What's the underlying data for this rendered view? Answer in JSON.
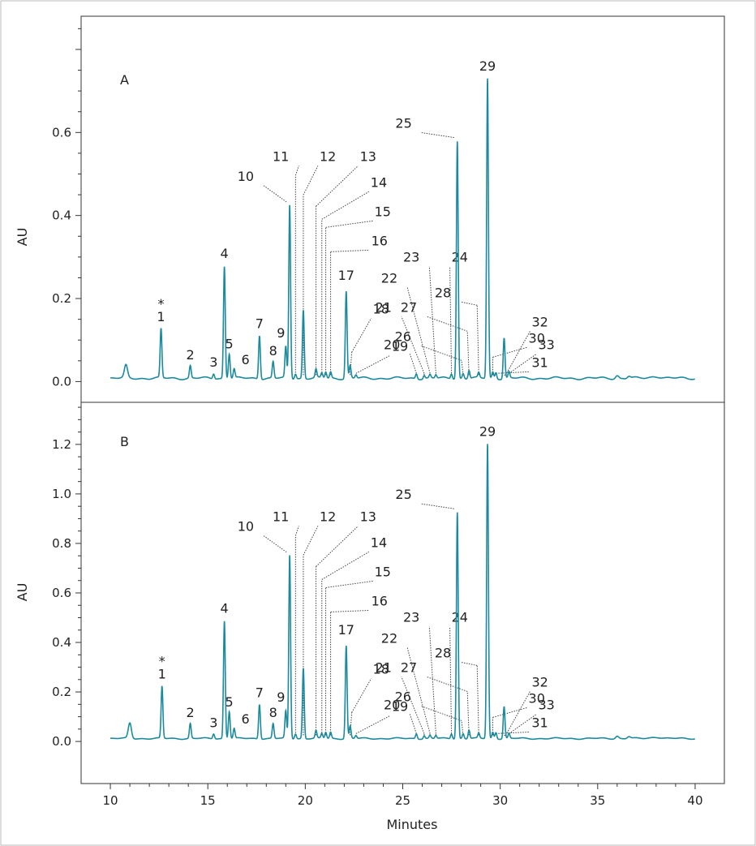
{
  "chart_data": {
    "type": "line",
    "xlabel": "Minutes",
    "x_ticks": [
      10,
      15,
      20,
      25,
      30,
      35,
      40
    ],
    "x_range": [
      8.5,
      41.5
    ],
    "line_color": "#1a8a9e",
    "panels": [
      {
        "label": "A",
        "ylabel": "AU",
        "y_ticks": [
          "0.0",
          "0.2",
          "0.4",
          "0.6"
        ],
        "y_range": [
          -0.05,
          0.88
        ],
        "baseline": 0.008,
        "extra_peaks": [
          {
            "t": 10.8,
            "h": 0.03,
            "w": 0.08
          },
          {
            "t": 36.0,
            "h": 0.007,
            "w": 0.08
          },
          {
            "t": 36.6,
            "h": 0.005,
            "w": 0.08
          },
          {
            "t": 38.0,
            "h": 0.005,
            "w": 0.25
          }
        ],
        "peaks": [
          {
            "label": "1",
            "t": 12.6,
            "h": 0.118,
            "star": true
          },
          {
            "label": "2",
            "t": 14.1,
            "h": 0.03
          },
          {
            "label": "3",
            "t": 15.3,
            "h": 0.012
          },
          {
            "label": "4",
            "t": 15.85,
            "h": 0.27
          },
          {
            "label": "5",
            "t": 16.1,
            "h": 0.06
          },
          {
            "label": "6",
            "t": 16.35,
            "h": 0.022
          },
          {
            "label": "7",
            "t": 17.65,
            "h": 0.105
          },
          {
            "label": "8",
            "t": 18.35,
            "h": 0.04
          },
          {
            "label": "9",
            "t": 19.0,
            "h": 0.075
          },
          {
            "label": "10",
            "t": 19.2,
            "h": 0.417
          },
          {
            "label": "11",
            "t": 19.5,
            "h": 0.012
          },
          {
            "label": "12",
            "t": 19.9,
            "h": 0.165
          },
          {
            "label": "13",
            "t": 20.55,
            "h": 0.02
          },
          {
            "label": "14",
            "t": 20.85,
            "h": 0.012
          },
          {
            "label": "15",
            "t": 21.05,
            "h": 0.015
          },
          {
            "label": "16",
            "t": 21.3,
            "h": 0.015
          },
          {
            "label": "17",
            "t": 22.1,
            "h": 0.21
          },
          {
            "label": "18",
            "t": 22.3,
            "h": 0.03
          },
          {
            "label": "19",
            "t": 22.6,
            "h": 0.008
          },
          {
            "label": "20",
            "t": 25.7,
            "h": 0.012
          },
          {
            "label": "21",
            "t": 26.1,
            "h": 0.008
          },
          {
            "label": "22",
            "t": 26.4,
            "h": 0.008
          },
          {
            "label": "23",
            "t": 26.7,
            "h": 0.008
          },
          {
            "label": "24",
            "t": 27.5,
            "h": 0.012
          },
          {
            "label": "25",
            "t": 27.8,
            "h": 0.572
          },
          {
            "label": "26",
            "t": 28.1,
            "h": 0.012
          },
          {
            "label": "27",
            "t": 28.4,
            "h": 0.02
          },
          {
            "label": "28",
            "t": 28.9,
            "h": 0.012
          },
          {
            "label": "29",
            "t": 29.35,
            "h": 0.722
          },
          {
            "label": "30",
            "t": 29.62,
            "h": 0.015
          },
          {
            "label": "31",
            "t": 29.78,
            "h": 0.015
          },
          {
            "label": "32",
            "t": 30.2,
            "h": 0.098
          },
          {
            "label": "33",
            "t": 30.45,
            "h": 0.015
          }
        ]
      },
      {
        "label": "B",
        "ylabel": "AU",
        "y_ticks": [
          "0.0",
          "0.2",
          "0.4",
          "0.6",
          "0.8",
          "1.0",
          "1.2"
        ],
        "y_range": [
          -0.17,
          1.37
        ],
        "baseline": 0.012,
        "extra_peaks": [
          {
            "t": 11.0,
            "h": 0.062,
            "w": 0.08
          },
          {
            "t": 36.0,
            "h": 0.01,
            "w": 0.08
          },
          {
            "t": 36.6,
            "h": 0.008,
            "w": 0.08
          },
          {
            "t": 38.0,
            "h": 0.006,
            "w": 0.25
          }
        ],
        "peaks": [
          {
            "label": "1",
            "t": 12.65,
            "h": 0.21,
            "star": true
          },
          {
            "label": "2",
            "t": 14.1,
            "h": 0.06
          },
          {
            "label": "3",
            "t": 15.3,
            "h": 0.02
          },
          {
            "label": "4",
            "t": 15.85,
            "h": 0.475
          },
          {
            "label": "5",
            "t": 16.1,
            "h": 0.11
          },
          {
            "label": "6",
            "t": 16.35,
            "h": 0.04
          },
          {
            "label": "7",
            "t": 17.65,
            "h": 0.14
          },
          {
            "label": "8",
            "t": 18.35,
            "h": 0.06
          },
          {
            "label": "9",
            "t": 19.0,
            "h": 0.11
          },
          {
            "label": "10",
            "t": 19.2,
            "h": 0.74
          },
          {
            "label": "11",
            "t": 19.5,
            "h": 0.02
          },
          {
            "label": "12",
            "t": 19.9,
            "h": 0.285
          },
          {
            "label": "13",
            "t": 20.55,
            "h": 0.03
          },
          {
            "label": "14",
            "t": 20.85,
            "h": 0.02
          },
          {
            "label": "15",
            "t": 21.05,
            "h": 0.025
          },
          {
            "label": "16",
            "t": 21.3,
            "h": 0.025
          },
          {
            "label": "17",
            "t": 22.1,
            "h": 0.375
          },
          {
            "label": "18",
            "t": 22.3,
            "h": 0.05
          },
          {
            "label": "19",
            "t": 22.6,
            "h": 0.012
          },
          {
            "label": "20",
            "t": 25.7,
            "h": 0.02
          },
          {
            "label": "21",
            "t": 26.1,
            "h": 0.012
          },
          {
            "label": "22",
            "t": 26.4,
            "h": 0.012
          },
          {
            "label": "23",
            "t": 26.7,
            "h": 0.012
          },
          {
            "label": "24",
            "t": 27.5,
            "h": 0.02
          },
          {
            "label": "25",
            "t": 27.8,
            "h": 0.915
          },
          {
            "label": "26",
            "t": 28.1,
            "h": 0.02
          },
          {
            "label": "27",
            "t": 28.4,
            "h": 0.035
          },
          {
            "label": "28",
            "t": 28.9,
            "h": 0.02
          },
          {
            "label": "29",
            "t": 29.35,
            "h": 1.19
          },
          {
            "label": "30",
            "t": 29.62,
            "h": 0.025
          },
          {
            "label": "31",
            "t": 29.78,
            "h": 0.025
          },
          {
            "label": "32",
            "t": 30.2,
            "h": 0.13
          },
          {
            "label": "33",
            "t": 30.45,
            "h": 0.02
          }
        ]
      }
    ]
  }
}
